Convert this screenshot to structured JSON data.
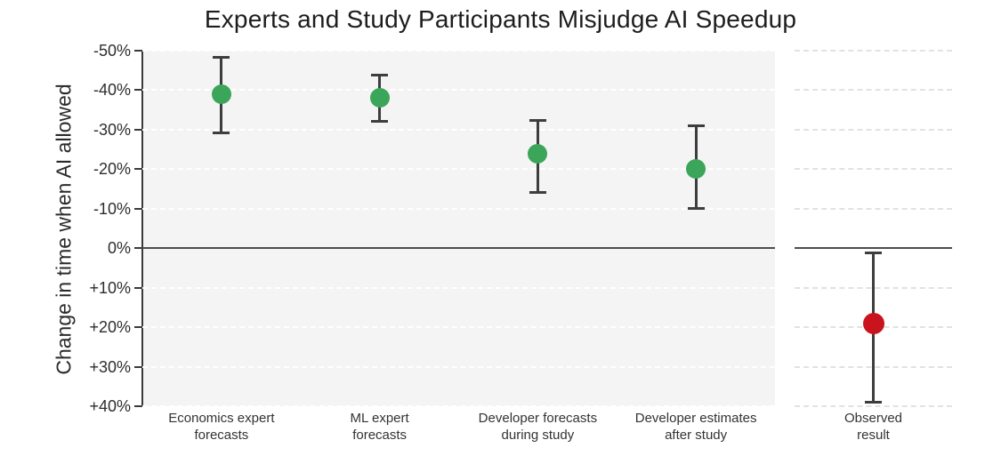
{
  "chart_data": {
    "type": "scatter",
    "title": "Experts and Study Participants Misjudge AI Speedup",
    "ylabel": "Change in time when AI allowed",
    "y_axis": {
      "min": -50,
      "max": 40,
      "step": 10,
      "inverted": true,
      "unit": "%",
      "tick_labels": [
        "-50%",
        "-40%",
        "-30%",
        "-20%",
        "-10%",
        "0%",
        "+10%",
        "+20%",
        "+30%",
        "+40%"
      ]
    },
    "baseline_value": 0,
    "grid": true,
    "legend": "none",
    "panels": [
      {
        "id": "main",
        "name": "forecast-panel"
      },
      {
        "id": "obs",
        "name": "observed-panel"
      }
    ],
    "points": [
      {
        "panel": "main",
        "category": "Economics expert forecasts",
        "category_lines": [
          "Economics expert",
          "forecasts"
        ],
        "value": -39,
        "ci": [
          -48.5,
          -29
        ],
        "color": "#3ba55a"
      },
      {
        "panel": "main",
        "category": "ML expert forecasts",
        "category_lines": [
          "ML expert",
          "forecasts"
        ],
        "value": -38,
        "ci": [
          -44,
          -32
        ],
        "color": "#3ba55a"
      },
      {
        "panel": "main",
        "category": "Developer forecasts during study",
        "category_lines": [
          "Developer forecasts",
          "during study"
        ],
        "value": -24,
        "ci": [
          -32.5,
          -14
        ],
        "color": "#3ba55a"
      },
      {
        "panel": "main",
        "category": "Developer estimates after study",
        "category_lines": [
          "Developer estimates",
          "after study"
        ],
        "value": -20,
        "ci": [
          -31,
          -10
        ],
        "color": "#3ba55a"
      },
      {
        "panel": "obs",
        "category": "Observed result",
        "category_lines": [
          "Observed",
          "result"
        ],
        "value": 19,
        "ci": [
          1,
          39
        ],
        "color": "#c9141d"
      }
    ],
    "colors": {
      "forecast_marker": "#3ba55a",
      "observed_marker": "#c9141d",
      "error_bar": "#3d3d3d",
      "axis": "#3a3a3a",
      "panel_background": "#f4f4f4",
      "baseline": "#4d4d4d"
    }
  }
}
